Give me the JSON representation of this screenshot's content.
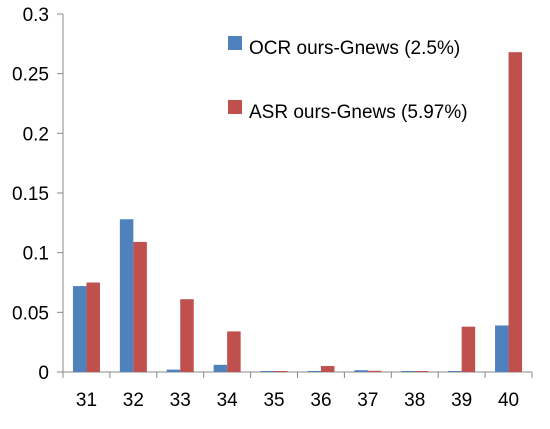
{
  "chart_data": {
    "type": "bar",
    "title": "",
    "xlabel": "",
    "ylabel": "",
    "categories": [
      "31",
      "32",
      "33",
      "34",
      "35",
      "36",
      "37",
      "38",
      "39",
      "40"
    ],
    "ylim": [
      0,
      0.3
    ],
    "yticks": [
      "0",
      "0.05",
      "0.1",
      "0.15",
      "0.2",
      "0.25",
      "0.3"
    ],
    "ytick_values": [
      0,
      0.05,
      0.1,
      0.15,
      0.2,
      0.25,
      0.3
    ],
    "grid": false,
    "legend_position": "top-right",
    "series": [
      {
        "name": "OCR ours-Gnews (2.5%)",
        "color": "#4f81bd",
        "values": [
          0.072,
          0.128,
          0.002,
          0.006,
          0.0005,
          0.0005,
          0.0015,
          0.0005,
          0.0005,
          0.039
        ]
      },
      {
        "name": "ASR ours-Gnews (5.97%)",
        "color": "#c0504d",
        "values": [
          0.075,
          0.109,
          0.061,
          0.034,
          0.0005,
          0.005,
          0.001,
          0.0005,
          0.038,
          0.268
        ]
      }
    ]
  }
}
